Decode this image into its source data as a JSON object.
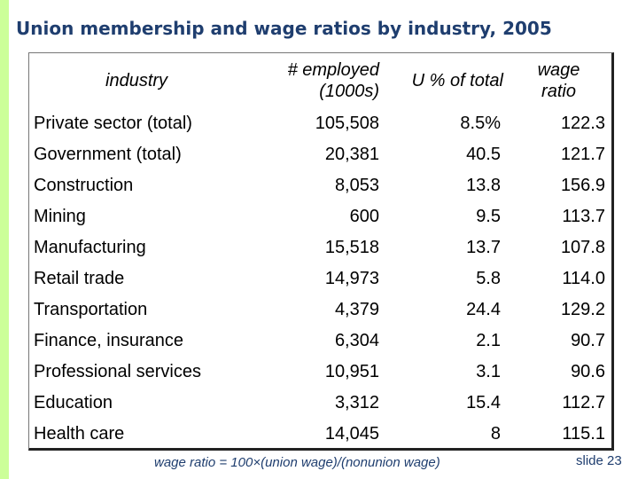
{
  "title": "Union membership and wage ratios by industry, 2005",
  "table": {
    "headers": {
      "industry": "industry",
      "employed_line1": "# employed",
      "employed_line2": "(1000s)",
      "union_pct": "U % of total",
      "wage_line1": "wage",
      "wage_line2": "ratio"
    },
    "rows": [
      {
        "industry": "Private sector (total)",
        "employed": "105,508",
        "union_pct": "8.5%",
        "wage_ratio": "122.3"
      },
      {
        "industry": "Government (total)",
        "employed": "20,381",
        "union_pct": "40.5",
        "wage_ratio": "121.7"
      },
      {
        "industry": "Construction",
        "employed": "8,053",
        "union_pct": "13.8",
        "wage_ratio": "156.9"
      },
      {
        "industry": "Mining",
        "employed": "600",
        "union_pct": "9.5",
        "wage_ratio": "113.7"
      },
      {
        "industry": "Manufacturing",
        "employed": "15,518",
        "union_pct": "13.7",
        "wage_ratio": "107.8"
      },
      {
        "industry": "Retail trade",
        "employed": "14,973",
        "union_pct": "5.8",
        "wage_ratio": "114.0"
      },
      {
        "industry": "Transportation",
        "employed": "4,379",
        "union_pct": "24.4",
        "wage_ratio": "129.2"
      },
      {
        "industry": "Finance, insurance",
        "employed": "6,304",
        "union_pct": "2.1",
        "wage_ratio": "90.7"
      },
      {
        "industry": "Professional services",
        "employed": "10,951",
        "union_pct": "3.1",
        "wage_ratio": "90.6"
      },
      {
        "industry": "Education",
        "employed": "3,312",
        "union_pct": "15.4",
        "wage_ratio": "112.7"
      },
      {
        "industry": "Health care",
        "employed": "14,045",
        "union_pct": "8",
        "wage_ratio": "115.1"
      }
    ]
  },
  "footnote": "wage ratio = 100×(union wage)/(nonunion wage)",
  "slide_label": "slide 23",
  "colors": {
    "accent_band": "#ccff99",
    "title_text": "#1f3e6f"
  }
}
